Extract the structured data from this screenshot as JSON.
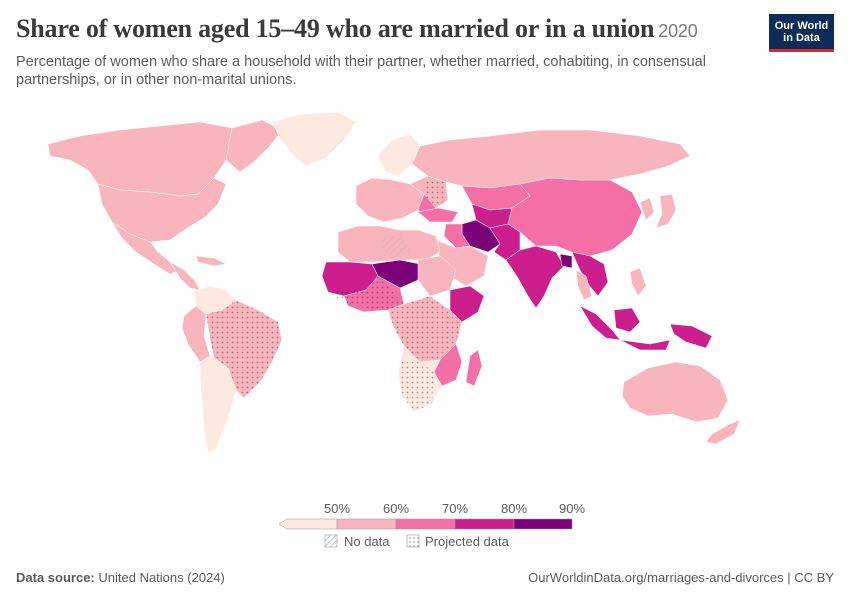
{
  "header": {
    "title": "Share of women aged 15–49 who are married or in a union",
    "year": "2020",
    "subtitle": "Percentage of women who share a household with their partner, whether married, cohabiting, in consensual partnerships, or in other non-marital unions."
  },
  "logo": {
    "line1": "Our World",
    "line2": "in Data"
  },
  "legend": {
    "ticks": [
      "50%",
      "60%",
      "70%",
      "80%",
      "90%"
    ],
    "colors": [
      "#fde9df",
      "#f9b5bd",
      "#f46fa6",
      "#cc1f8d",
      "#7a0177"
    ],
    "no_data_label": "No data",
    "projected_label": "Projected data"
  },
  "map_colors": {
    "lt50": "#fde9df",
    "c50_60": "#f9b5bd",
    "c60_70": "#f46fa6",
    "c70_80": "#cc1f8d",
    "c80_90": "#7a0177",
    "border": "#ffffff"
  },
  "footer": {
    "source_label": "Data source:",
    "source_value": "United Nations (2024)",
    "url": "OurWorldinData.org/marriages-and-divorces | CC BY"
  }
}
